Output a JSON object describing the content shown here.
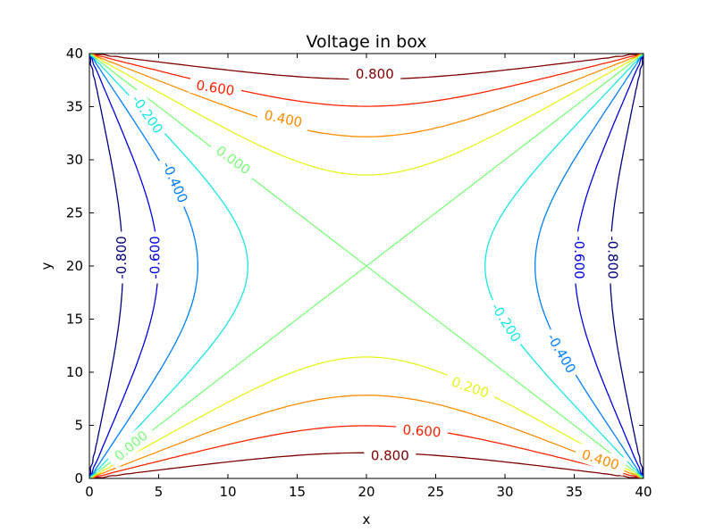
{
  "chart_data": {
    "type": "contour",
    "title": "Voltage in box",
    "xlabel": "x",
    "ylabel": "y",
    "xlim": [
      0,
      40
    ],
    "ylim": [
      0,
      40
    ],
    "xticks": [
      0,
      5,
      10,
      15,
      20,
      25,
      30,
      35,
      40
    ],
    "yticks": [
      0,
      5,
      10,
      15,
      20,
      25,
      30,
      35,
      40
    ],
    "grid": false,
    "levels": [
      {
        "value": 0.8,
        "label": "0.800",
        "color": "#7f0000"
      },
      {
        "value": 0.6,
        "label": "0.600",
        "color": "#ff2200"
      },
      {
        "value": 0.4,
        "label": "0.400",
        "color": "#ff8c00"
      },
      {
        "value": 0.2,
        "label": "0.200",
        "color": "#e6f51a"
      },
      {
        "value": 0.0,
        "label": "0.000",
        "color": "#7cff7a"
      },
      {
        "value": -0.2,
        "label": "-0.200",
        "color": "#1ae6e6"
      },
      {
        "value": -0.4,
        "label": "-0.400",
        "color": "#0080ff"
      },
      {
        "value": -0.6,
        "label": "-0.600",
        "color": "#0000e0"
      },
      {
        "value": -0.8,
        "label": "-0.800",
        "color": "#00007f"
      }
    ],
    "contour_labels": [
      {
        "text": "0.800",
        "level": 0.8,
        "x": 20.6,
        "y": 38.1,
        "angle": 0
      },
      {
        "text": "0.600",
        "level": 0.6,
        "x": 9.1,
        "y": 36.8,
        "angle": 9
      },
      {
        "text": "0.400",
        "level": 0.4,
        "x": 14.0,
        "y": 33.9,
        "angle": 12
      },
      {
        "text": "-0.200",
        "level": -0.2,
        "x": 4.2,
        "y": 34.3,
        "angle": 55
      },
      {
        "text": "0.000",
        "level": 0.0,
        "x": 10.4,
        "y": 30.0,
        "angle": 36
      },
      {
        "text": "-0.400",
        "level": -0.4,
        "x": 6.2,
        "y": 27.9,
        "angle": 66
      },
      {
        "text": "-0.800",
        "level": -0.8,
        "x": 2.3,
        "y": 20.8,
        "angle": -90
      },
      {
        "text": "-0.600",
        "level": -0.6,
        "x": 4.7,
        "y": 20.8,
        "angle": -90
      },
      {
        "text": "-0.600",
        "level": -0.6,
        "x": 35.4,
        "y": 20.8,
        "angle": 90
      },
      {
        "text": "-0.800",
        "level": -0.8,
        "x": 37.8,
        "y": 20.8,
        "angle": 90
      },
      {
        "text": "-0.200",
        "level": -0.2,
        "x": 30.1,
        "y": 14.7,
        "angle": 58
      },
      {
        "text": "-0.400",
        "level": -0.4,
        "x": 34.1,
        "y": 11.8,
        "angle": 60
      },
      {
        "text": "0.200",
        "level": 0.2,
        "x": 27.5,
        "y": 8.6,
        "angle": 19
      },
      {
        "text": "0.600",
        "level": 0.6,
        "x": 24.0,
        "y": 4.5,
        "angle": 4
      },
      {
        "text": "0.000",
        "level": 0.0,
        "x": 3.0,
        "y": 3.1,
        "angle": -40
      },
      {
        "text": "0.800",
        "level": 0.8,
        "x": 21.7,
        "y": 2.2,
        "angle": 0
      },
      {
        "text": "0.400",
        "level": 0.4,
        "x": 36.9,
        "y": 1.8,
        "angle": 18
      }
    ]
  }
}
